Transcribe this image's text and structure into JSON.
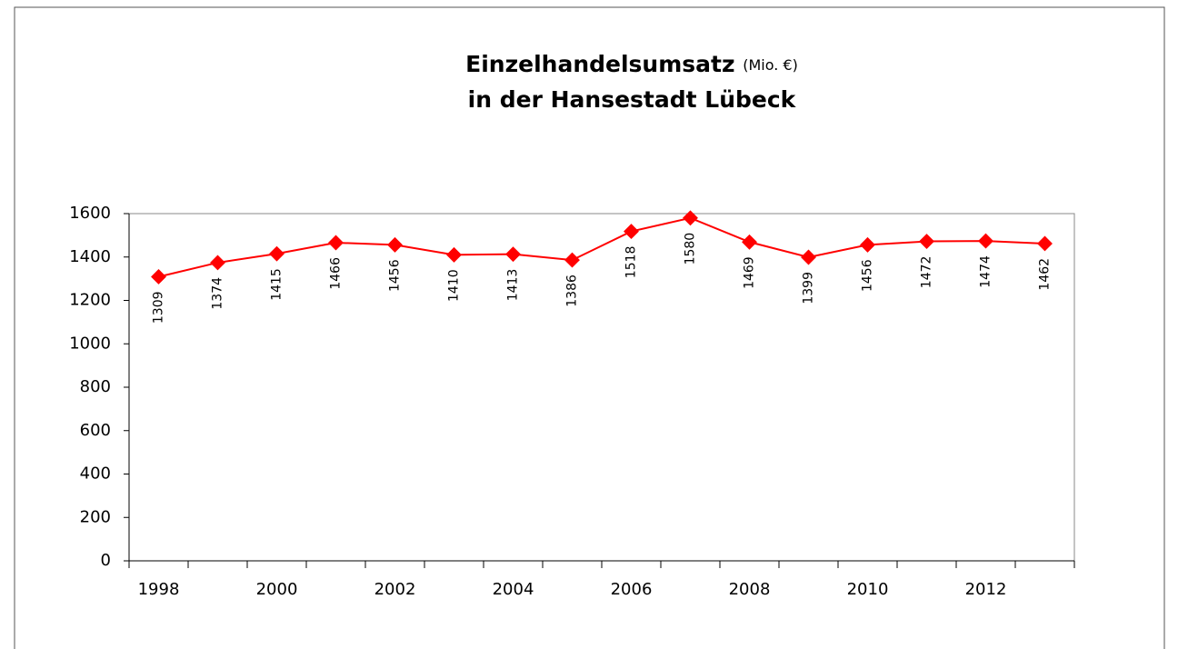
{
  "chart_data": {
    "type": "line",
    "title": "Einzelhandelsumsatz",
    "title_unit": "(Mio. €)",
    "subtitle": "in der Hansestadt Lübeck",
    "categories": [
      "1998",
      null,
      "2000",
      null,
      "2002",
      null,
      "2004",
      null,
      "2006",
      null,
      "2008",
      null,
      "2010",
      null,
      "2012",
      null
    ],
    "values": [
      1309,
      1374,
      1415,
      1466,
      1456,
      1410,
      1413,
      1386,
      1518,
      1580,
      1469,
      1399,
      1456,
      1472,
      1474,
      1462
    ],
    "color": "#ff0000",
    "ylim": [
      0,
      1600
    ],
    "yticks": [
      0,
      200,
      400,
      600,
      800,
      1000,
      1200,
      1400,
      1600
    ],
    "grid": false
  }
}
